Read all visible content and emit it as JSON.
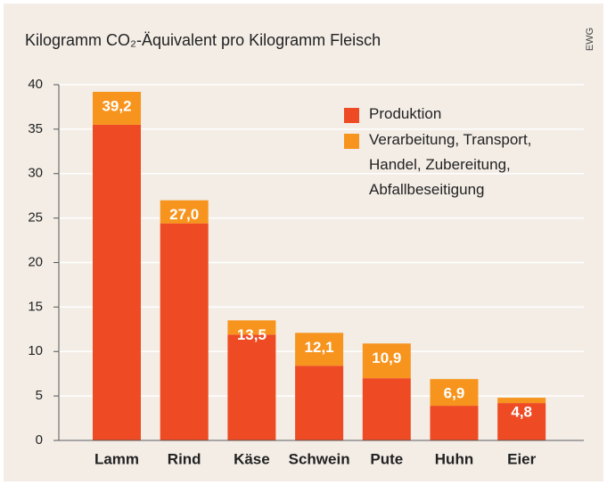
{
  "chart_data": {
    "type": "stacked_bar",
    "title": "Kilogramm CO₂-Äquivalent pro Kilogramm Fleisch",
    "source": "EWG",
    "categories": [
      "Lamm",
      "Rind",
      "Käse",
      "Schwein",
      "Pute",
      "Huhn",
      "Eier"
    ],
    "series": [
      {
        "name": "Produktion",
        "color": "#ee4a23",
        "values": [
          35.5,
          24.4,
          11.9,
          8.4,
          7.0,
          3.9,
          4.2
        ]
      },
      {
        "name": "Verarbeitung, Transport, Handel, Zubereitung, Abfallbeseitigung",
        "color": "#f7941d",
        "values": [
          3.7,
          2.6,
          1.6,
          3.7,
          3.9,
          3.0,
          0.6
        ]
      }
    ],
    "totals": [
      39.2,
      27.0,
      13.5,
      12.1,
      10.9,
      6.9,
      4.8
    ],
    "total_labels": [
      "39,2",
      "27,0",
      "13,5",
      "12,1",
      "10,9",
      "6,9",
      "4,8"
    ],
    "ylim": [
      0,
      40
    ],
    "yticks": [
      0,
      5,
      10,
      15,
      20,
      25,
      30,
      35,
      40
    ],
    "grid": true
  }
}
